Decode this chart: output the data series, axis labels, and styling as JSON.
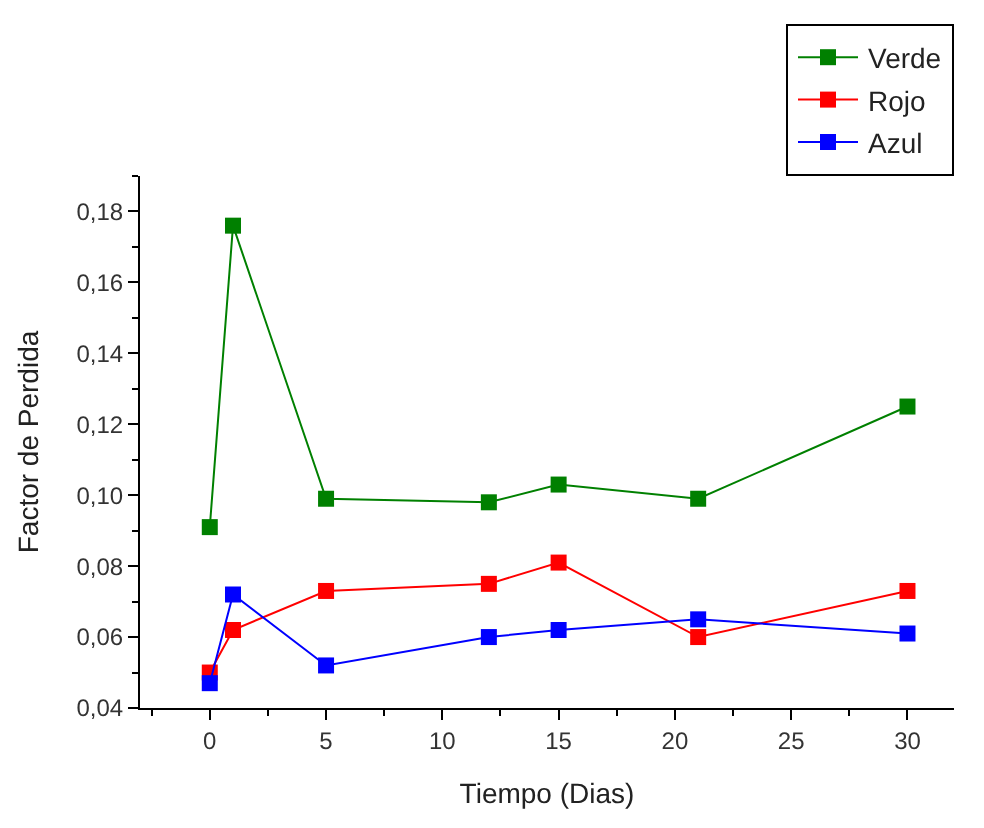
{
  "chart_data": {
    "type": "line",
    "xlabel": "Tiempo (Dias)",
    "ylabel": "Factor de Perdida",
    "x": [
      0,
      1,
      5,
      12,
      15,
      21,
      30
    ],
    "series": [
      {
        "name": "Verde",
        "color": "#008000",
        "values": [
          0.091,
          0.176,
          0.099,
          0.098,
          0.103,
          0.099,
          0.125
        ]
      },
      {
        "name": "Rojo",
        "color": "#ff0000",
        "values": [
          0.05,
          0.062,
          0.073,
          0.075,
          0.081,
          0.06,
          0.073
        ]
      },
      {
        "name": "Azul",
        "color": "#0000ff",
        "values": [
          0.047,
          0.072,
          0.052,
          0.06,
          0.062,
          0.065,
          0.061
        ]
      }
    ],
    "xlim": [
      -3,
      32
    ],
    "xticks": [
      0,
      5,
      10,
      15,
      20,
      25,
      30
    ],
    "ylim": [
      0.04,
      0.19
    ],
    "yticks": [
      {
        "value": 0.04,
        "label": "0,04"
      },
      {
        "value": 0.06,
        "label": "0,06"
      },
      {
        "value": 0.08,
        "label": "0,08"
      },
      {
        "value": 0.1,
        "label": "0,10"
      },
      {
        "value": 0.12,
        "label": "0,12"
      },
      {
        "value": 0.14,
        "label": "0,14"
      },
      {
        "value": 0.16,
        "label": "0,16"
      },
      {
        "value": 0.18,
        "label": "0,18"
      }
    ],
    "marker": "square",
    "grid": false,
    "legend": "top right"
  }
}
